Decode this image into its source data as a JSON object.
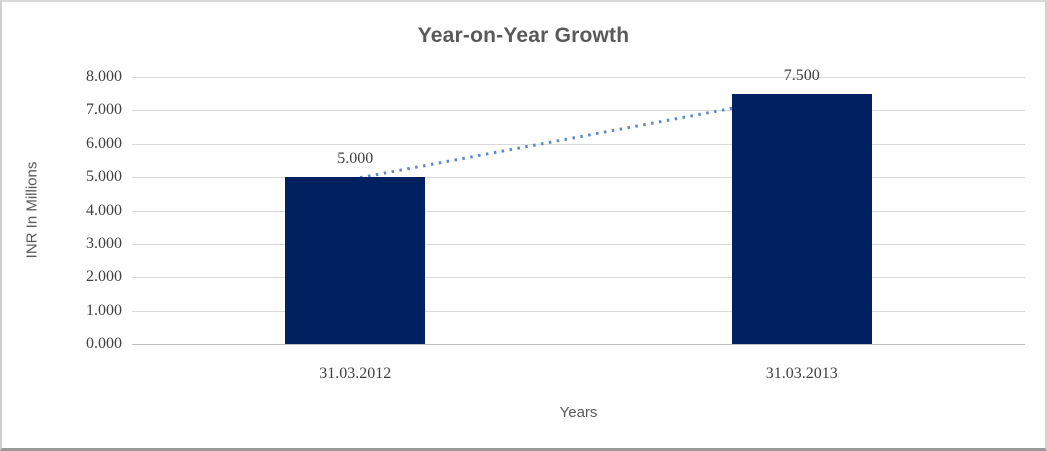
{
  "chart_data": {
    "type": "bar",
    "title": "Year-on-Year Growth",
    "xlabel": "Years",
    "ylabel": "INR In Millions",
    "categories": [
      "31.03.2012",
      "31.03.2013"
    ],
    "values": [
      5.0,
      7.5
    ],
    "data_labels": [
      "5.000",
      "7.500"
    ],
    "ylim": [
      0,
      8
    ],
    "ytick_step": 1,
    "ytick_labels": [
      "0.000",
      "1.000",
      "2.000",
      "3.000",
      "4.000",
      "5.000",
      "6.000",
      "7.000",
      "8.000"
    ],
    "grid": true,
    "legend_position": "none",
    "trendline": {
      "style": "dotted",
      "from_value": 5.0,
      "to_value": 7.5
    },
    "colors": {
      "bar": "#002060",
      "trendline": "#5b8ac6",
      "gridline": "#d9d9d9",
      "axis_line": "#bfbfbf",
      "title_text": "#595959",
      "tick_text": "#3f3f3f"
    }
  }
}
